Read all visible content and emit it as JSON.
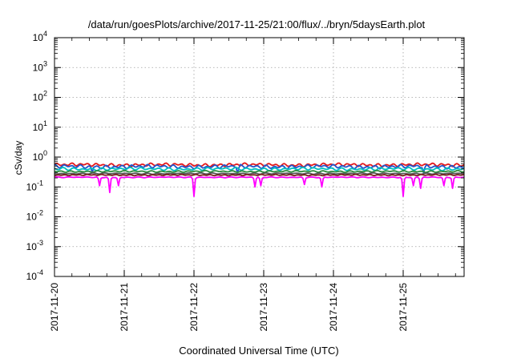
{
  "chart_data": {
    "type": "line",
    "title": "/data/run/goesPlots/archive/2017-11-25/21:00/flux/../bryn/5daysEarth.plot",
    "xlabel": "Coordinated Universal Time (UTC)",
    "ylabel": "cSv/day",
    "yscale": "log",
    "ylim": [
      0.0001,
      10000
    ],
    "xlim": [
      "2017-11-20T00:00",
      "2017-11-25T21:00"
    ],
    "grid": true,
    "legend": "none",
    "x_ticks": [
      "2017-11-20",
      "2017-11-21",
      "2017-11-22",
      "2017-11-23",
      "2017-11-24",
      "2017-11-25"
    ],
    "y_ticks": [
      {
        "value": 0.0001,
        "base": "10",
        "exp": "-4"
      },
      {
        "value": 0.001,
        "base": "10",
        "exp": "-3"
      },
      {
        "value": 0.01,
        "base": "10",
        "exp": "-2"
      },
      {
        "value": 0.1,
        "base": "10",
        "exp": "-1"
      },
      {
        "value": 1,
        "base": "10",
        "exp": "0"
      },
      {
        "value": 10,
        "base": "10",
        "exp": "1"
      },
      {
        "value": 100,
        "base": "10",
        "exp": "2"
      },
      {
        "value": 1000,
        "base": "10",
        "exp": "3"
      },
      {
        "value": 10000,
        "base": "10",
        "exp": "4"
      }
    ],
    "series": [
      {
        "color": "#e41a1c",
        "baseline": 0.55,
        "noise": 0.08,
        "period_h": 2.7,
        "dips": []
      },
      {
        "color": "#2255cc",
        "baseline": 0.48,
        "noise": 0.09,
        "period_h": 2.9,
        "dips": [
          {
            "t": "2017-11-20T13:00",
            "value": 0.3
          },
          {
            "t": "2017-11-22T15:00",
            "value": 0.28
          },
          {
            "t": "2017-11-25T07:00",
            "value": 0.3
          }
        ]
      },
      {
        "color": "#00bfbf",
        "baseline": 0.4,
        "noise": 0.07,
        "period_h": 3.3,
        "dips": []
      },
      {
        "color": "#2e8b3e",
        "baseline": 0.33,
        "noise": 0.04,
        "period_h": 3.1,
        "dips": []
      },
      {
        "color": "#555555",
        "baseline": 0.28,
        "noise": 0.03,
        "period_h": 3.7,
        "dips": []
      },
      {
        "color": "#7a1f1f",
        "baseline": 0.25,
        "noise": 0.03,
        "period_h": 2.5,
        "dips": []
      },
      {
        "color": "#ff00ff",
        "baseline": 0.21,
        "noise": 0.02,
        "period_h": 3.5,
        "dips": [
          {
            "t": "2017-11-20T15:30",
            "value": 0.11
          },
          {
            "t": "2017-11-20T19:00",
            "value": 0.065
          },
          {
            "t": "2017-11-20T22:00",
            "value": 0.11
          },
          {
            "t": "2017-11-22T00:00",
            "value": 0.048
          },
          {
            "t": "2017-11-22T21:00",
            "value": 0.1
          },
          {
            "t": "2017-11-22T23:00",
            "value": 0.11
          },
          {
            "t": "2017-11-23T14:00",
            "value": 0.12
          },
          {
            "t": "2017-11-23T20:00",
            "value": 0.1
          },
          {
            "t": "2017-11-25T00:00",
            "value": 0.048
          },
          {
            "t": "2017-11-25T03:30",
            "value": 0.11
          },
          {
            "t": "2017-11-25T06:00",
            "value": 0.09
          },
          {
            "t": "2017-11-25T14:00",
            "value": 0.11
          },
          {
            "t": "2017-11-25T17:00",
            "value": 0.09
          }
        ]
      }
    ]
  }
}
